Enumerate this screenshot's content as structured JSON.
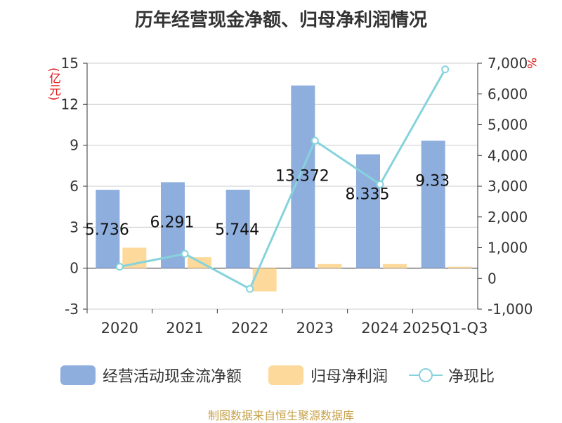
{
  "chart_data": {
    "type": "bar",
    "title": "历年经营现金净额、归母净利润情况",
    "source": "制图数据来自恒生聚源数据库",
    "y_left_unit": "(亿元)",
    "y_right_unit": "%",
    "categories": [
      "2020",
      "2021",
      "2022",
      "2023",
      "2024",
      "2025Q1-Q3"
    ],
    "y_left_ticks": [
      "15",
      "12",
      "9",
      "6",
      "3",
      "0",
      "-3"
    ],
    "y_right_ticks": [
      "7,000",
      "6,000",
      "5,000",
      "4,000",
      "3,000",
      "2,000",
      "1,000",
      "0",
      "-1,000"
    ],
    "ylim_left": [
      -3,
      15
    ],
    "ylim_right": [
      -1000,
      7000
    ],
    "legend_position": "bottom",
    "series": [
      {
        "name": "经营活动现金流净额",
        "type": "bar",
        "axis": "left",
        "color": "#8eaedd",
        "values": [
          5.736,
          6.291,
          5.744,
          13.372,
          8.335,
          9.33
        ],
        "labels": [
          "5.736",
          "6.291",
          "5.744",
          "13.372",
          "8.335",
          "9.33"
        ]
      },
      {
        "name": "归母净利润",
        "type": "bar",
        "axis": "left",
        "color": "#fdd99b",
        "values": [
          1.5,
          0.8,
          -1.7,
          0.3,
          0.3,
          0.1
        ]
      },
      {
        "name": "净现比",
        "type": "line",
        "axis": "right",
        "color": "#86d3dc",
        "values": [
          380,
          800,
          -340,
          4480,
          3060,
          6800
        ]
      }
    ]
  }
}
